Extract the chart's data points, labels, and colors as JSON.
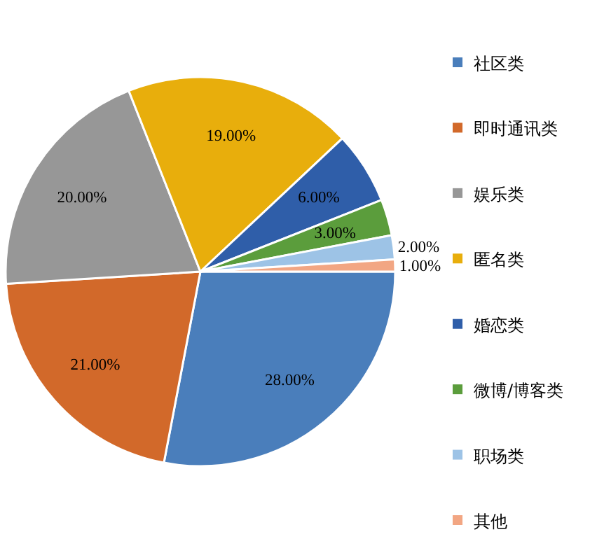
{
  "chart_data": {
    "type": "pie",
    "categories": [
      "社区类",
      "即时通讯类",
      "娱乐类",
      "匿名类",
      "婚恋类",
      "微博/博客类",
      "职场类",
      "其他"
    ],
    "values": [
      28,
      21,
      20,
      19,
      6,
      3,
      2,
      1
    ],
    "value_labels": [
      "28.00%",
      "21.00%",
      "20.00%",
      "19.00%",
      "6.00%",
      "3.00%",
      "2.00%",
      "1.00%"
    ],
    "colors": [
      "#4a7ebb",
      "#d2692a",
      "#979797",
      "#e8ae0c",
      "#2f5ea9",
      "#5b9d3c",
      "#9dc3e6",
      "#f2a683"
    ],
    "legend": "right"
  }
}
